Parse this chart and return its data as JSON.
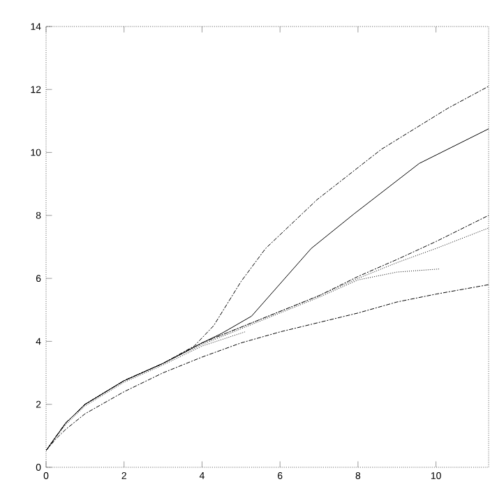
{
  "chart_data": {
    "type": "line",
    "xlim": [
      0,
      11.35
    ],
    "ylim": [
      0,
      14
    ],
    "xticks": [
      0,
      2,
      4,
      6,
      8,
      10
    ],
    "yticks": [
      0,
      2,
      4,
      6,
      8,
      10,
      12,
      14
    ],
    "marker": "none",
    "series": [
      {
        "color": "#000000",
        "line_style": "dashed",
        "x": [
          0,
          0.25,
          0.5,
          1,
          2,
          3,
          3.8,
          4.3,
          5,
          5.63,
          6.95,
          8.6,
          10.3,
          11.35
        ],
        "values": [
          0.53,
          0.97,
          1.4,
          2.0,
          2.75,
          3.3,
          3.85,
          4.5,
          5.9,
          6.95,
          8.5,
          10.1,
          11.4,
          12.1
        ]
      },
      {
        "color": "#000000",
        "line_style": "solid",
        "x": [
          0,
          0.25,
          0.5,
          1,
          2,
          3,
          4,
          4.5,
          5.27,
          6.8,
          7.9,
          9.57,
          11.35
        ],
        "values": [
          0.53,
          0.97,
          1.4,
          2.0,
          2.75,
          3.3,
          3.95,
          4.25,
          4.8,
          6.95,
          8.05,
          9.65,
          10.75
        ]
      },
      {
        "color": "#000000",
        "line_style": "dashed",
        "x": [
          0,
          0.25,
          0.5,
          1,
          2,
          3,
          4,
          5,
          6,
          7,
          8,
          9,
          10,
          11.35
        ],
        "values": [
          0.53,
          0.97,
          1.4,
          2.0,
          2.75,
          3.3,
          3.95,
          4.45,
          4.95,
          5.45,
          6.06,
          6.6,
          7.17,
          8.0
        ]
      },
      {
        "color": "#000000",
        "line_style": "dotted",
        "x": [
          0,
          0.25,
          0.5,
          1,
          2,
          3,
          4,
          5,
          6,
          7,
          8,
          9,
          10,
          11.35
        ],
        "values": [
          0.53,
          0.97,
          1.4,
          2.0,
          2.75,
          3.3,
          3.95,
          4.45,
          4.95,
          5.45,
          6.0,
          6.5,
          6.95,
          7.6
        ]
      },
      {
        "color": "#000000",
        "line_style": "dotted",
        "x": [
          0,
          0.25,
          0.5,
          1,
          2,
          3,
          4,
          5,
          6,
          7,
          8,
          9,
          10.1
        ],
        "values": [
          0.53,
          0.97,
          1.4,
          2.0,
          2.75,
          3.3,
          3.9,
          4.4,
          4.9,
          5.4,
          5.95,
          6.2,
          6.3
        ]
      },
      {
        "color": "#000000",
        "line_style": "dashed",
        "x": [
          0,
          0.25,
          0.5,
          1,
          2,
          3,
          4,
          5,
          6,
          7,
          8,
          9,
          10,
          11.35
        ],
        "values": [
          0.53,
          0.9,
          1.2,
          1.7,
          2.4,
          3.0,
          3.5,
          3.95,
          4.3,
          4.6,
          4.9,
          5.25,
          5.5,
          5.8
        ]
      },
      {
        "color": "#000000",
        "line_style": "dotted",
        "x": [
          0,
          0.25,
          0.5,
          1,
          2,
          3,
          4,
          5.1
        ],
        "values": [
          0.53,
          0.95,
          1.35,
          1.95,
          2.7,
          3.25,
          3.85,
          4.3
        ]
      }
    ]
  }
}
